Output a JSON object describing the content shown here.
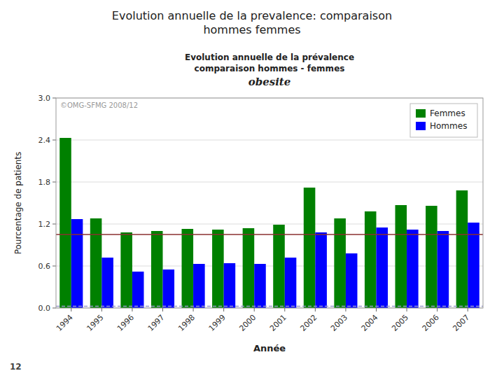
{
  "chart_data": {
    "type": "bar",
    "title": [
      "Evolution annuelle de la prevalence: comparaison",
      "hommes femmes"
    ],
    "subtitle": [
      "Evolution annuelle de la prévalence",
      "comparaison hommes - femmes",
      "obesite"
    ],
    "x_label": "Année",
    "y_label": "Pourcentage de patients",
    "annotations": [
      "©OMG-SFMG 2008/12",
      "12"
    ],
    "categories": [
      "1994",
      "1995",
      "1996",
      "1997",
      "1998",
      "1999",
      "2000",
      "2001",
      "2002",
      "2003",
      "2004",
      "2005",
      "2006",
      "2007"
    ],
    "series": [
      {
        "name": "Femmes",
        "color": "#008000",
        "values": [
          2.43,
          1.28,
          1.08,
          1.1,
          1.13,
          1.12,
          1.14,
          1.19,
          1.72,
          1.28,
          1.38,
          1.47,
          1.46,
          1.68
        ]
      },
      {
        "name": "Hommes",
        "color": "#0000FF",
        "values": [
          1.27,
          0.72,
          0.52,
          0.55,
          0.63,
          0.64,
          0.63,
          0.72,
          1.08,
          0.78,
          1.15,
          1.12,
          1.1,
          1.22
        ]
      }
    ],
    "hlines": [
      {
        "value": 1.05,
        "color": "#8B3030",
        "line_style": "solid"
      },
      {
        "value": 0.025,
        "color": "#9999CC",
        "line_style": "dashed"
      }
    ],
    "ylim": [
      0.0,
      3.0
    ],
    "yticks": [
      {
        "value": 0.0,
        "label": "0.0"
      },
      0.6,
      1.2,
      1.8,
      2.4,
      {
        "value": 3.0,
        "label": "3.0"
      }
    ],
    "grid": true,
    "legend": "upper right"
  }
}
